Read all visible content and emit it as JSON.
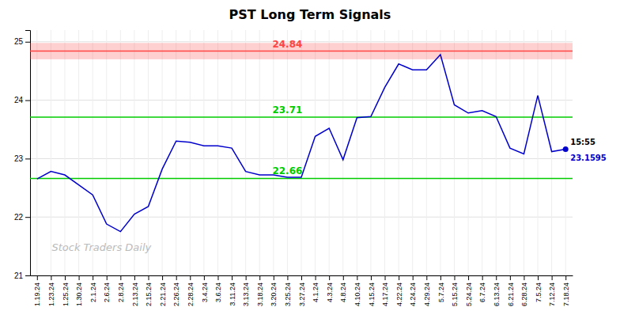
{
  "chart_data": {
    "type": "line",
    "title": "PST Long Term Signals",
    "categories": [
      "1.19.24",
      "1.23.24",
      "1.25.24",
      "1.30.24",
      "2.1.24",
      "2.6.24",
      "2.8.24",
      "2.13.24",
      "2.15.24",
      "2.21.24",
      "2.26.24",
      "2.28.24",
      "3.4.24",
      "3.6.24",
      "3.11.24",
      "3.13.24",
      "3.18.24",
      "3.20.24",
      "3.25.24",
      "3.27.24",
      "4.1.24",
      "4.3.24",
      "4.8.24",
      "4.10.24",
      "4.15.24",
      "4.17.24",
      "4.22.24",
      "4.24.24",
      "4.29.24",
      "5.7.24",
      "5.15.24",
      "5.24.24",
      "6.7.24",
      "6.13.24",
      "6.21.24",
      "6.28.24",
      "7.5.24",
      "7.12.24",
      "7.18.24"
    ],
    "values": [
      22.65,
      22.78,
      22.72,
      22.55,
      22.38,
      21.88,
      21.75,
      22.05,
      22.18,
      22.82,
      23.3,
      23.28,
      23.22,
      23.22,
      23.18,
      22.78,
      22.72,
      22.72,
      22.68,
      22.68,
      23.38,
      23.52,
      22.98,
      23.7,
      23.72,
      24.22,
      24.62,
      24.52,
      24.52,
      24.78,
      23.92,
      23.78,
      23.82,
      23.72,
      23.18,
      23.08,
      24.08,
      23.12,
      23.1595
    ],
    "color": "#0000cc",
    "ylim": [
      21.0,
      25.2
    ],
    "yticks": [
      21,
      22,
      23,
      24,
      25
    ],
    "grid": true,
    "reference_lines": [
      {
        "value": 24.84,
        "label": "24.84",
        "color": "#ff4444",
        "band": [
          24.7,
          24.98
        ]
      },
      {
        "value": 23.71,
        "label": "23.71",
        "color": "#00cc00"
      },
      {
        "value": 22.66,
        "label": "22.66",
        "color": "#00cc00"
      }
    ],
    "last_point_labels": [
      "15:55",
      "23.1595"
    ],
    "watermark": "Stock Traders Daily"
  }
}
